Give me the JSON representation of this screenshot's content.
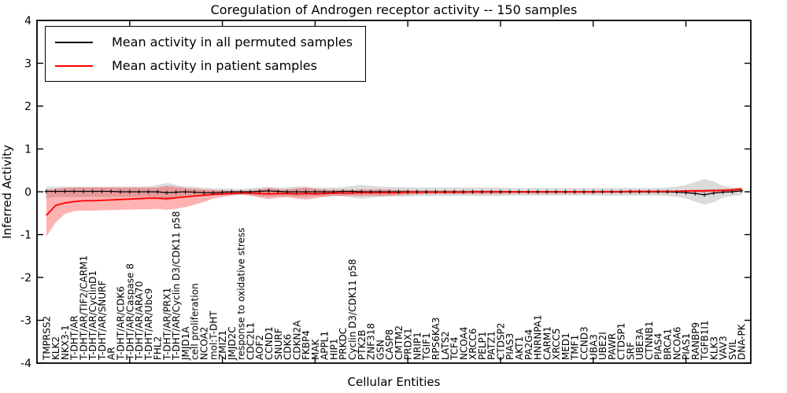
{
  "title": "Coregulation of Androgen receptor activity -- 150 samples",
  "legend": {
    "entries": [
      {
        "label": "Mean activity in all permuted samples",
        "color": "#000000"
      },
      {
        "label": "Mean activity in patient samples",
        "color": "#ff0000"
      }
    ]
  },
  "chart_data": {
    "type": "line",
    "title": "Coregulation of Androgen receptor activity -- 150 samples",
    "xlabel": "Cellular Entities",
    "ylabel": "Inferred Activity",
    "ylim": [
      -4,
      4
    ],
    "yticks": [
      -4,
      -3,
      -2,
      -1,
      0,
      1,
      2,
      3,
      4
    ],
    "xlim": [
      0,
      77
    ],
    "x_major_ticks": [
      10,
      20,
      30,
      40,
      50,
      60,
      70
    ],
    "grid": false,
    "legend_position": "upper left",
    "categories": [
      "TMPRSS2",
      "KLK2",
      "NKX3-1",
      "T-DHT/AR",
      "T-DHT/AR/TIF2/CARM1",
      "T-DHT/AR/CyclinD1",
      "T-DHT/AR/SNURF",
      "AR",
      "T-DHT/AR/CDK6",
      "T-DHT/AR/Caspase 8",
      "T-DHT/AR/ARA70",
      "T-DHT/AR/Ubc9",
      "FHL2",
      "T-DHT/AR/PRX1",
      "T-DHT/AR/Cyclin D3/CDK11 p58",
      "JMJD1A",
      "cell proliferation",
      "NCOA2",
      "mol:T-DHT",
      "ZMIZ1",
      "JMJD2C",
      "response to oxidative stress",
      "CDC2L1",
      "AOF2",
      "CCND1",
      "SNURF",
      "CDK6",
      "CDKN2A",
      "FKBP4",
      "MAK",
      "APPL1",
      "HIP1",
      "PRKDC",
      "Cyclin D3/CDK11 p58",
      "PTK2B",
      "ZNF318",
      "GSN",
      "CASP8",
      "CMTM2",
      "PRDX1",
      "NRIP1",
      "TGIF1",
      "RPS6KA3",
      "LATS2",
      "TCF4",
      "NCOA4",
      "XRCC6",
      "PELP1",
      "PATZ1",
      "CTDSP2",
      "PIAS3",
      "AKT1",
      "PA2G4",
      "HNRNPA1",
      "CARM1",
      "XRCC5",
      "MED1",
      "TMF1",
      "CCND3",
      "UBA3",
      "UBE2I",
      "PAWR",
      "CTDSP1",
      "SRF",
      "UBE3A",
      "CTNNB1",
      "PIAS4",
      "BRCA1",
      "NCOA6",
      "PIAS1",
      "RANBP9",
      "TGFB1I1",
      "KLK3",
      "VAV3",
      "SVIL",
      "DNA-PK"
    ],
    "series": [
      {
        "name": "Mean activity in all permuted samples",
        "color": "#000000",
        "marker": "+",
        "values": [
          0.01,
          0.01,
          0.01,
          0.01,
          0.01,
          0.01,
          0.01,
          0.01,
          0.0,
          0.0,
          0.0,
          0.0,
          0.0,
          -0.02,
          -0.01,
          0.0,
          -0.01,
          -0.02,
          -0.02,
          -0.01,
          0.0,
          0.0,
          0.0,
          0.01,
          0.02,
          0.01,
          0.0,
          0.0,
          0.0,
          0.0,
          0.0,
          0.0,
          0.01,
          0.01,
          0.0,
          0.0,
          0.0,
          0.0,
          0.0,
          0.0,
          0.0,
          0.0,
          0.0,
          0.0,
          0.0,
          0.0,
          0.0,
          0.0,
          0.0,
          0.0,
          0.0,
          0.0,
          0.0,
          0.0,
          0.0,
          0.0,
          0.0,
          0.0,
          0.0,
          0.0,
          0.0,
          0.0,
          0.0,
          0.0,
          0.0,
          0.0,
          0.0,
          0.0,
          -0.01,
          -0.02,
          -0.04,
          -0.07,
          -0.03,
          -0.01,
          0.0,
          0.02
        ],
        "band": {
          "color": "rgba(0,0,0,0.14)",
          "upper": [
            0.12,
            0.12,
            0.12,
            0.12,
            0.12,
            0.12,
            0.12,
            0.12,
            0.12,
            0.12,
            0.12,
            0.12,
            0.16,
            0.21,
            0.16,
            0.12,
            0.12,
            0.1,
            0.08,
            0.08,
            0.07,
            0.06,
            0.08,
            0.1,
            0.12,
            0.1,
            0.1,
            0.12,
            0.12,
            0.1,
            0.1,
            0.1,
            0.1,
            0.14,
            0.16,
            0.14,
            0.12,
            0.11,
            0.11,
            0.11,
            0.1,
            0.1,
            0.1,
            0.1,
            0.1,
            0.1,
            0.1,
            0.1,
            0.1,
            0.1,
            0.09,
            0.09,
            0.09,
            0.09,
            0.09,
            0.09,
            0.09,
            0.09,
            0.09,
            0.09,
            0.09,
            0.09,
            0.09,
            0.09,
            0.09,
            0.09,
            0.09,
            0.1,
            0.12,
            0.16,
            0.23,
            0.3,
            0.24,
            0.14,
            0.1,
            0.09
          ],
          "lower": [
            -0.15,
            -0.12,
            -0.12,
            -0.12,
            -0.12,
            -0.12,
            -0.12,
            -0.12,
            -0.12,
            -0.12,
            -0.12,
            -0.12,
            -0.16,
            -0.21,
            -0.16,
            -0.12,
            -0.12,
            -0.1,
            -0.08,
            -0.08,
            -0.07,
            -0.06,
            -0.08,
            -0.1,
            -0.12,
            -0.1,
            -0.1,
            -0.12,
            -0.12,
            -0.1,
            -0.1,
            -0.1,
            -0.1,
            -0.14,
            -0.16,
            -0.14,
            -0.12,
            -0.11,
            -0.11,
            -0.11,
            -0.1,
            -0.1,
            -0.1,
            -0.1,
            -0.1,
            -0.1,
            -0.1,
            -0.1,
            -0.1,
            -0.1,
            -0.09,
            -0.09,
            -0.09,
            -0.09,
            -0.09,
            -0.09,
            -0.09,
            -0.09,
            -0.09,
            -0.09,
            -0.09,
            -0.09,
            -0.09,
            -0.09,
            -0.09,
            -0.09,
            -0.09,
            -0.1,
            -0.12,
            -0.16,
            -0.23,
            -0.3,
            -0.24,
            -0.14,
            -0.1,
            -0.08
          ]
        }
      },
      {
        "name": "Mean activity in patient samples",
        "color": "#ff0000",
        "marker": "none",
        "values": [
          -0.55,
          -0.32,
          -0.26,
          -0.23,
          -0.21,
          -0.21,
          -0.2,
          -0.19,
          -0.18,
          -0.17,
          -0.16,
          -0.15,
          -0.15,
          -0.16,
          -0.14,
          -0.12,
          -0.1,
          -0.08,
          -0.06,
          -0.05,
          -0.04,
          -0.03,
          -0.03,
          -0.04,
          -0.05,
          -0.04,
          -0.04,
          -0.05,
          -0.04,
          -0.05,
          -0.04,
          -0.03,
          -0.03,
          -0.03,
          -0.02,
          -0.02,
          -0.02,
          -0.02,
          -0.02,
          -0.01,
          -0.01,
          -0.01,
          -0.01,
          -0.01,
          -0.01,
          -0.01,
          0.0,
          0.0,
          0.0,
          0.0,
          0.0,
          0.0,
          0.0,
          0.0,
          0.0,
          0.0,
          0.0,
          0.0,
          0.0,
          0.0,
          0.0,
          0.0,
          0.0,
          0.01,
          0.01,
          0.01,
          0.01,
          0.01,
          0.01,
          0.02,
          0.02,
          0.02,
          0.03,
          0.03,
          0.04,
          0.06
        ],
        "band": {
          "color": "rgba(255,0,0,0.30)",
          "upper": [
            0.05,
            0.07,
            0.09,
            0.1,
            0.1,
            0.1,
            0.1,
            0.1,
            0.1,
            0.1,
            0.1,
            0.1,
            0.1,
            0.14,
            0.11,
            0.09,
            0.07,
            0.05,
            0.04,
            0.03,
            0.02,
            0.02,
            0.03,
            0.06,
            0.09,
            0.06,
            0.05,
            0.08,
            0.1,
            0.07,
            0.05,
            0.04,
            0.05,
            0.04,
            0.06,
            0.05,
            0.06,
            0.05,
            0.04,
            0.04,
            0.03,
            0.03,
            0.03,
            0.03,
            0.03,
            0.03,
            0.03,
            0.03,
            0.03,
            0.03,
            0.02,
            0.02,
            0.02,
            0.02,
            0.02,
            0.02,
            0.02,
            0.02,
            0.02,
            0.02,
            0.03,
            0.03,
            0.03,
            0.03,
            0.03,
            0.03,
            0.03,
            0.03,
            0.03,
            0.04,
            0.05,
            0.06,
            0.06,
            0.07,
            0.08,
            0.1
          ],
          "lower": [
            -1.05,
            -0.72,
            -0.52,
            -0.45,
            -0.44,
            -0.44,
            -0.43,
            -0.43,
            -0.42,
            -0.42,
            -0.41,
            -0.41,
            -0.4,
            -0.42,
            -0.4,
            -0.36,
            -0.3,
            -0.24,
            -0.16,
            -0.12,
            -0.09,
            -0.07,
            -0.09,
            -0.13,
            -0.17,
            -0.14,
            -0.12,
            -0.16,
            -0.18,
            -0.15,
            -0.12,
            -0.09,
            -0.1,
            -0.09,
            -0.1,
            -0.09,
            -0.1,
            -0.09,
            -0.08,
            -0.07,
            -0.06,
            -0.05,
            -0.05,
            -0.05,
            -0.05,
            -0.05,
            -0.05,
            -0.05,
            -0.05,
            -0.05,
            -0.04,
            -0.04,
            -0.04,
            -0.04,
            -0.04,
            -0.04,
            -0.04,
            -0.04,
            -0.04,
            -0.04,
            -0.03,
            -0.03,
            -0.03,
            -0.03,
            -0.03,
            -0.03,
            -0.03,
            -0.03,
            -0.02,
            -0.02,
            -0.02,
            -0.02,
            -0.01,
            0.0,
            0.01,
            0.02
          ]
        }
      }
    ]
  }
}
